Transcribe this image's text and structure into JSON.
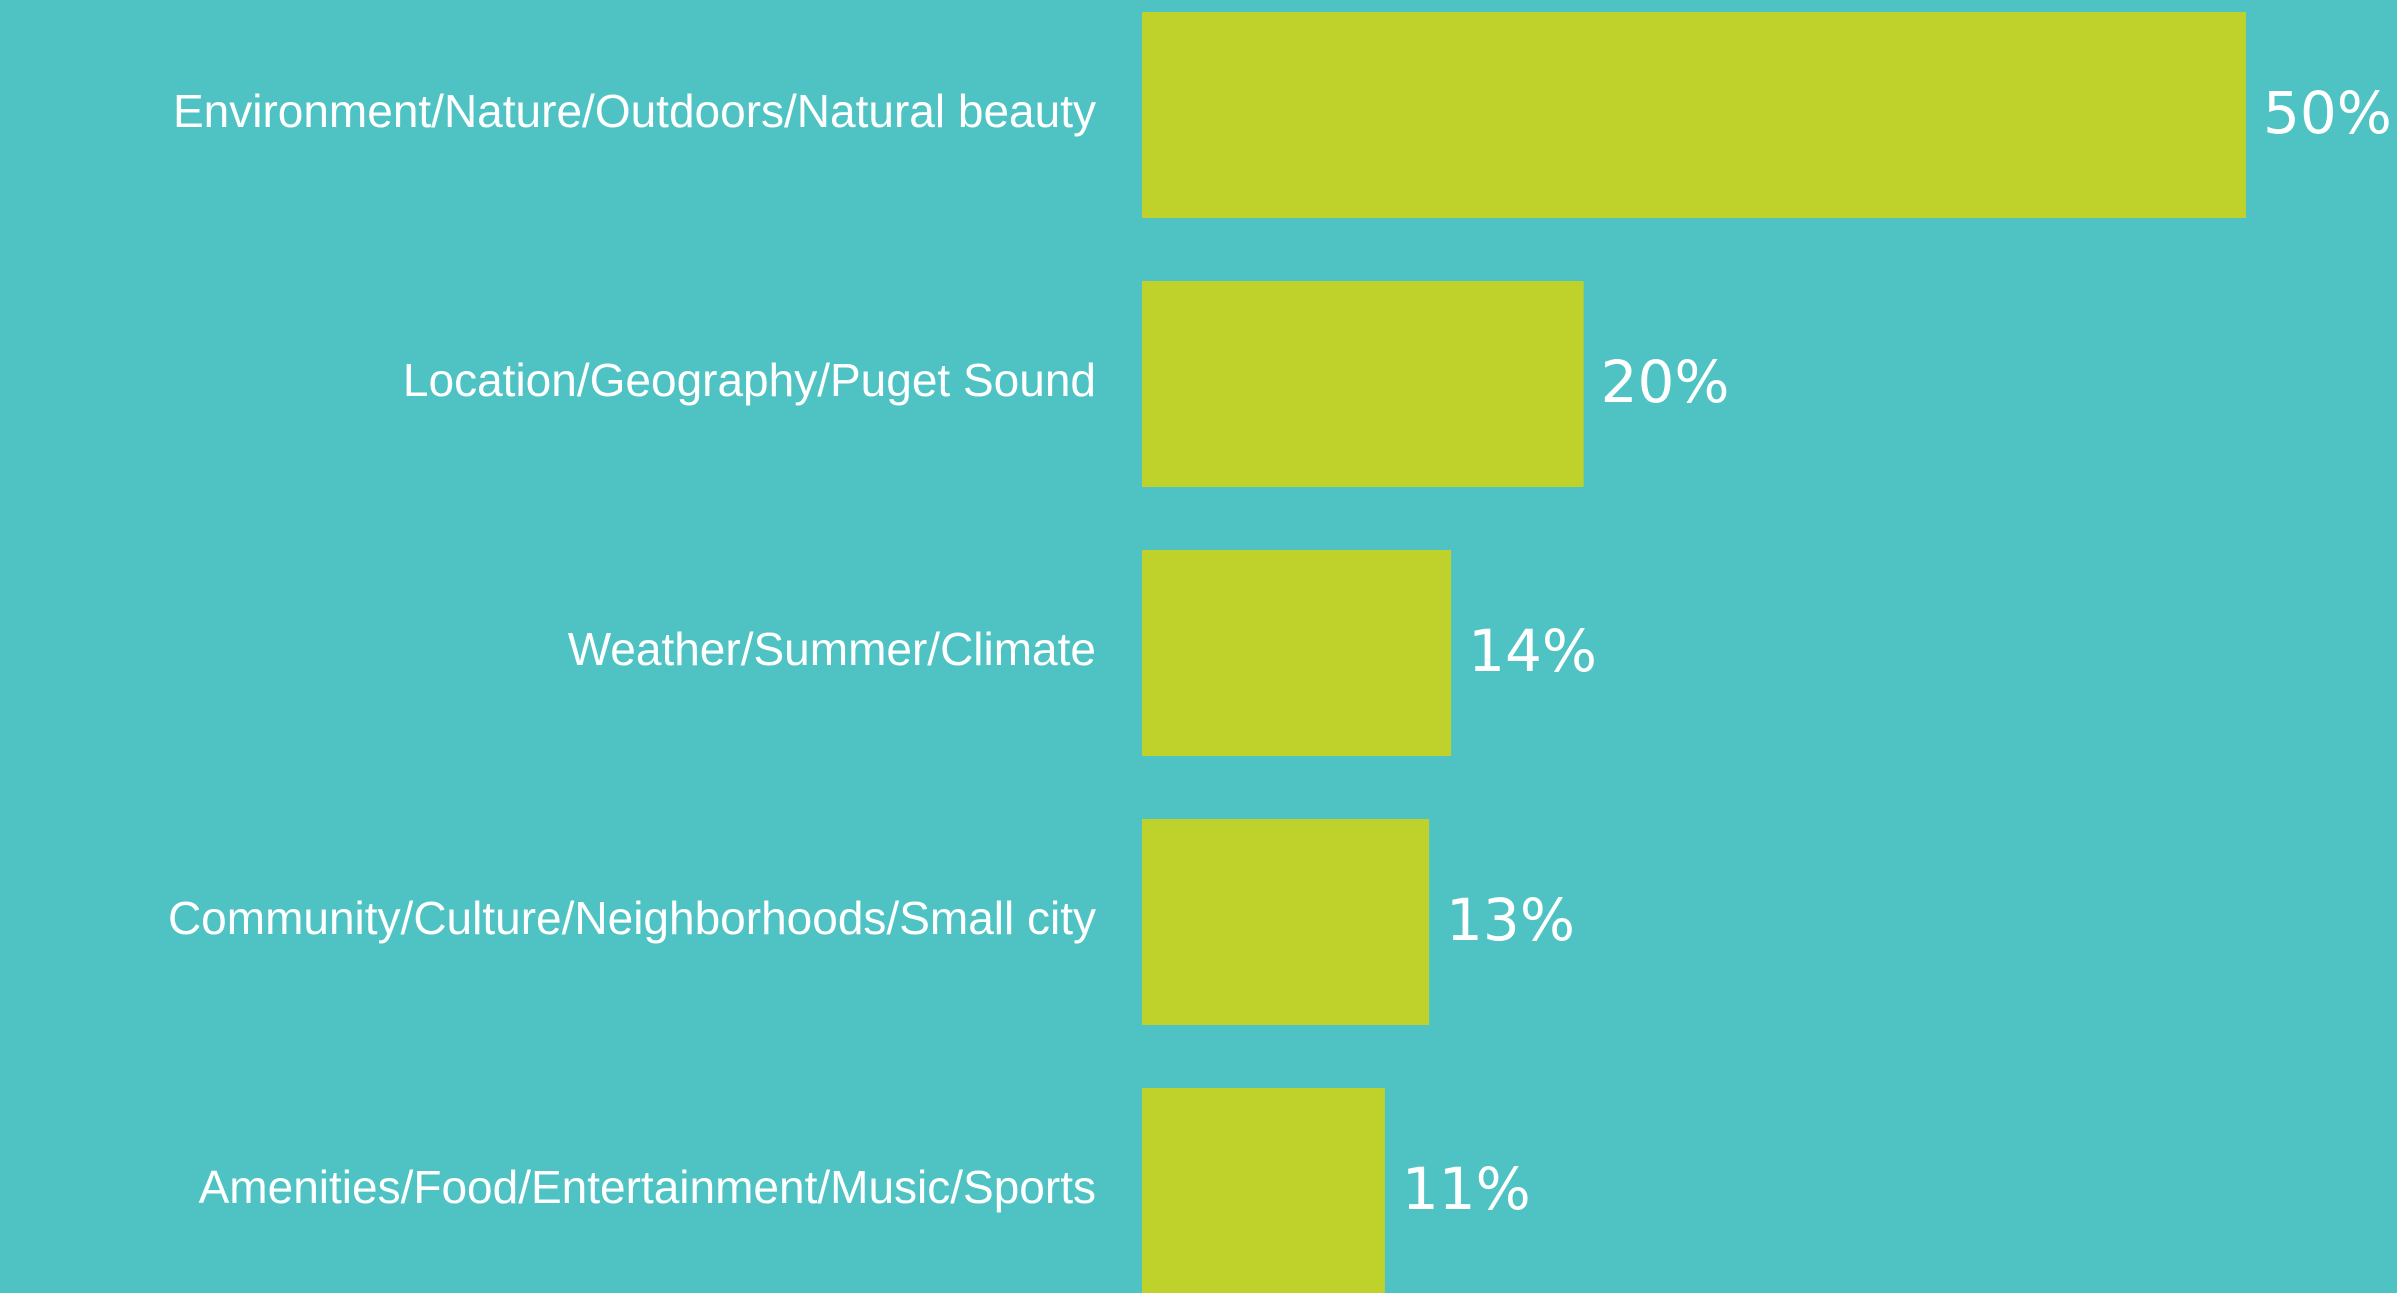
{
  "chart_data": {
    "type": "bar",
    "orientation": "horizontal",
    "categories": [
      "Environment/Nature/Outdoors/Natural beauty",
      "Location/Geography/Puget Sound",
      "Weather/Summer/Climate",
      "Community/Culture/Neighborhoods/Small city",
      "Amenities/Food/Entertainment/Music/Sports"
    ],
    "values": [
      50,
      20,
      14,
      13,
      11
    ],
    "value_labels": [
      "50%",
      "20%",
      "14%",
      "13%",
      "11%"
    ],
    "color": "#bfd22b"
  }
}
